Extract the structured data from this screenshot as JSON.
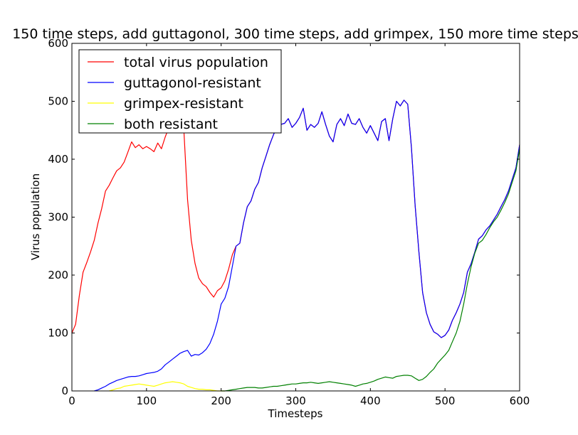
{
  "chart_data": {
    "type": "line",
    "title": "150 time steps, add guttagonol, 300 time steps, add grimpex, 150 more time steps",
    "xlabel": "Timesteps",
    "ylabel": "Virus population",
    "xlim": [
      0,
      600
    ],
    "ylim": [
      0,
      600
    ],
    "xticks": [
      0,
      100,
      200,
      300,
      400,
      500,
      600
    ],
    "yticks": [
      0,
      100,
      200,
      300,
      400,
      500,
      600
    ],
    "grid": false,
    "legend_position": "top-left",
    "series": [
      {
        "name": "total virus population",
        "color": "#ff0000",
        "x": [
          0,
          5,
          10,
          15,
          20,
          25,
          30,
          35,
          40,
          45,
          50,
          55,
          60,
          65,
          70,
          75,
          80,
          85,
          90,
          95,
          100,
          105,
          110,
          115,
          120,
          125,
          130,
          135,
          140,
          145,
          150,
          155,
          160,
          165,
          170,
          175,
          180,
          185,
          190,
          195,
          200,
          205,
          210,
          215,
          220,
          225,
          230,
          235,
          240,
          245,
          250,
          255,
          260,
          265,
          270,
          275,
          280,
          285,
          290,
          295,
          300,
          305,
          310,
          315,
          320,
          325,
          330,
          335,
          340,
          345,
          350,
          355,
          360,
          365,
          370,
          375,
          380,
          385,
          390,
          395,
          400,
          405,
          410,
          415,
          420,
          425,
          430,
          435,
          440,
          445,
          450,
          455,
          460,
          465,
          470,
          475,
          480,
          485,
          490,
          495,
          500,
          505,
          510,
          515,
          520,
          525,
          530,
          535,
          540,
          545,
          550,
          555,
          560,
          565,
          570,
          575,
          580,
          585,
          590,
          595,
          600
        ],
        "y": [
          100,
          115,
          165,
          205,
          222,
          240,
          260,
          290,
          315,
          345,
          355,
          368,
          380,
          385,
          395,
          412,
          430,
          420,
          425,
          418,
          422,
          418,
          413,
          428,
          418,
          438,
          455,
          465,
          470,
          462,
          450,
          330,
          260,
          220,
          195,
          185,
          180,
          170,
          162,
          173,
          178,
          190,
          210,
          235,
          250,
          255,
          290,
          318,
          328,
          348,
          360,
          385,
          405,
          425,
          442,
          456,
          460,
          462,
          470,
          455,
          462,
          472,
          488,
          450,
          460,
          455,
          462,
          482,
          460,
          440,
          430,
          460,
          470,
          458,
          478,
          462,
          460,
          470,
          455,
          445,
          458,
          445,
          432,
          465,
          470,
          432,
          470,
          500,
          492,
          502,
          495,
          420,
          320,
          240,
          170,
          135,
          115,
          102,
          98,
          92,
          96,
          105,
          122,
          135,
          150,
          170,
          205,
          220,
          240,
          262,
          268,
          278,
          285,
          295,
          305,
          318,
          330,
          345,
          365,
          385,
          425
        ]
      },
      {
        "name": "guttagonol-resistant",
        "color": "#0000ff",
        "x": [
          30,
          35,
          40,
          45,
          50,
          55,
          60,
          65,
          70,
          75,
          80,
          85,
          90,
          95,
          100,
          105,
          110,
          115,
          120,
          125,
          130,
          135,
          140,
          145,
          150,
          155,
          160,
          165,
          170,
          175,
          180,
          185,
          190,
          195,
          200,
          205,
          210,
          215,
          220,
          225,
          230,
          235,
          240,
          245,
          250,
          255,
          260,
          265,
          270,
          275,
          280,
          285,
          290,
          295,
          300,
          305,
          310,
          315,
          320,
          325,
          330,
          335,
          340,
          345,
          350,
          355,
          360,
          365,
          370,
          375,
          380,
          385,
          390,
          395,
          400,
          405,
          410,
          415,
          420,
          425,
          430,
          435,
          440,
          445,
          450,
          455,
          460,
          465,
          470,
          475,
          480,
          485,
          490,
          495,
          500,
          505,
          510,
          515,
          520,
          525,
          530,
          535,
          540,
          545,
          550,
          555,
          560,
          565,
          570,
          575,
          580,
          585,
          590,
          595,
          600
        ],
        "y": [
          0,
          2,
          5,
          8,
          12,
          15,
          18,
          20,
          22,
          24,
          25,
          25,
          26,
          28,
          30,
          31,
          32,
          34,
          38,
          45,
          50,
          55,
          60,
          65,
          68,
          70,
          60,
          63,
          62,
          66,
          72,
          82,
          98,
          120,
          150,
          160,
          180,
          215,
          250,
          255,
          290,
          318,
          328,
          348,
          360,
          385,
          405,
          425,
          442,
          456,
          460,
          462,
          470,
          455,
          462,
          472,
          488,
          450,
          460,
          455,
          462,
          482,
          460,
          440,
          430,
          460,
          470,
          458,
          478,
          462,
          460,
          470,
          455,
          445,
          458,
          445,
          432,
          465,
          470,
          432,
          470,
          500,
          492,
          502,
          495,
          420,
          320,
          240,
          170,
          135,
          115,
          102,
          98,
          92,
          96,
          105,
          122,
          135,
          150,
          170,
          205,
          220,
          240,
          262,
          268,
          278,
          285,
          295,
          305,
          318,
          330,
          345,
          365,
          385,
          425
        ]
      },
      {
        "name": "grimpex-resistant",
        "color": "#ffff00",
        "x": [
          50,
          55,
          60,
          65,
          70,
          75,
          80,
          85,
          90,
          95,
          100,
          105,
          110,
          115,
          120,
          125,
          130,
          135,
          140,
          145,
          150,
          155,
          160,
          165,
          170,
          175,
          180,
          185,
          190,
          195,
          200,
          205
        ],
        "y": [
          0,
          2,
          4,
          5,
          8,
          9,
          10,
          11,
          12,
          11,
          10,
          9,
          8,
          10,
          12,
          14,
          15,
          16,
          15,
          14,
          12,
          8,
          6,
          4,
          3,
          3,
          2,
          2,
          1,
          0,
          0,
          0
        ]
      },
      {
        "name": "both resistant",
        "color": "#008000",
        "x": [
          200,
          205,
          210,
          215,
          220,
          225,
          230,
          235,
          240,
          245,
          250,
          255,
          260,
          265,
          270,
          275,
          280,
          285,
          290,
          295,
          300,
          305,
          310,
          315,
          320,
          325,
          330,
          335,
          340,
          345,
          350,
          355,
          360,
          365,
          370,
          375,
          380,
          385,
          390,
          395,
          400,
          405,
          410,
          415,
          420,
          425,
          430,
          435,
          440,
          445,
          450,
          455,
          460,
          465,
          470,
          475,
          480,
          485,
          490,
          495,
          500,
          505,
          510,
          515,
          520,
          525,
          530,
          535,
          540,
          545,
          550,
          555,
          560,
          565,
          570,
          575,
          580,
          585,
          590,
          595,
          600
        ],
        "y": [
          0,
          0,
          1,
          2,
          3,
          4,
          5,
          6,
          6,
          6,
          5,
          5,
          6,
          7,
          8,
          8,
          9,
          10,
          11,
          12,
          12,
          13,
          14,
          14,
          15,
          14,
          13,
          14,
          15,
          16,
          15,
          14,
          13,
          12,
          11,
          10,
          8,
          10,
          12,
          13,
          15,
          17,
          20,
          22,
          24,
          23,
          22,
          25,
          26,
          27,
          27,
          26,
          22,
          18,
          20,
          25,
          32,
          38,
          48,
          55,
          62,
          70,
          85,
          100,
          120,
          150,
          185,
          215,
          238,
          255,
          260,
          270,
          282,
          292,
          300,
          312,
          325,
          340,
          360,
          380,
          418
        ]
      }
    ]
  }
}
